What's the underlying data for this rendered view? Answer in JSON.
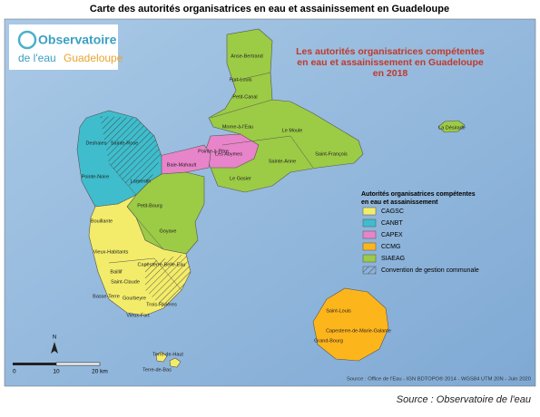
{
  "header": {
    "title": "Carte des autorités organisatrices en eau et assainissement en Guadeloupe"
  },
  "logo": {
    "line1": "Observatoire",
    "line2a": "de l'eau",
    "line2b": "Guadeloupe"
  },
  "map_title": {
    "lines": [
      "Les autorités organisatrices compétentes",
      "en eau et assainissement en Guadeloupe",
      "en 2018"
    ]
  },
  "legend": {
    "title": [
      "Autorités organisatrices compétentes",
      "en eau et assainissement"
    ],
    "items": [
      {
        "label": "CAGSC",
        "color": "#f3ec6a"
      },
      {
        "label": "CANBT",
        "color": "#3fbdcc"
      },
      {
        "label": "CAPEX",
        "color": "#e884c9"
      },
      {
        "label": "CCMG",
        "color": "#fdb51c"
      },
      {
        "label": "SIAEAG",
        "color": "#9ccb45"
      }
    ],
    "hatch": "Convention de gestion communale"
  },
  "communes": [
    "Anse-Bertrand",
    "Port-Louis",
    "Petit-Canal",
    "Morne-à-l'Eau",
    "Le Moule",
    "Les Abymes",
    "Pointe-à-Pitre",
    "Baie-Mahault",
    "Sainte-Anne",
    "Saint-François",
    "Le Gosier",
    "La Désirade",
    "Deshaies",
    "Sainte-Rose",
    "Pointe-Noire",
    "Lamentin",
    "Petit-Bourg",
    "Goyave",
    "Bouillante",
    "Vieux-Habitants",
    "Capesterre-Belle-Eau",
    "Baillif",
    "Saint-Claude",
    "Basse-Terre",
    "Gourbeyre",
    "Trois-Rivières",
    "Vieux-Fort",
    "Terre-de-Haut",
    "Terre-de-Bas",
    "Saint-Louis",
    "Capesterre-de-Marie-Galante",
    "Grand-Bourg"
  ],
  "scale": {
    "labels": [
      "0",
      "10",
      "20 km"
    ],
    "north": "N"
  },
  "map_source": "Source : Office de l'Eau - IGN BDTOPO® 2014 - WGS84 UTM 20N - Juin 2020",
  "footer": {
    "source": "Source : Observatoire de l'eau"
  }
}
